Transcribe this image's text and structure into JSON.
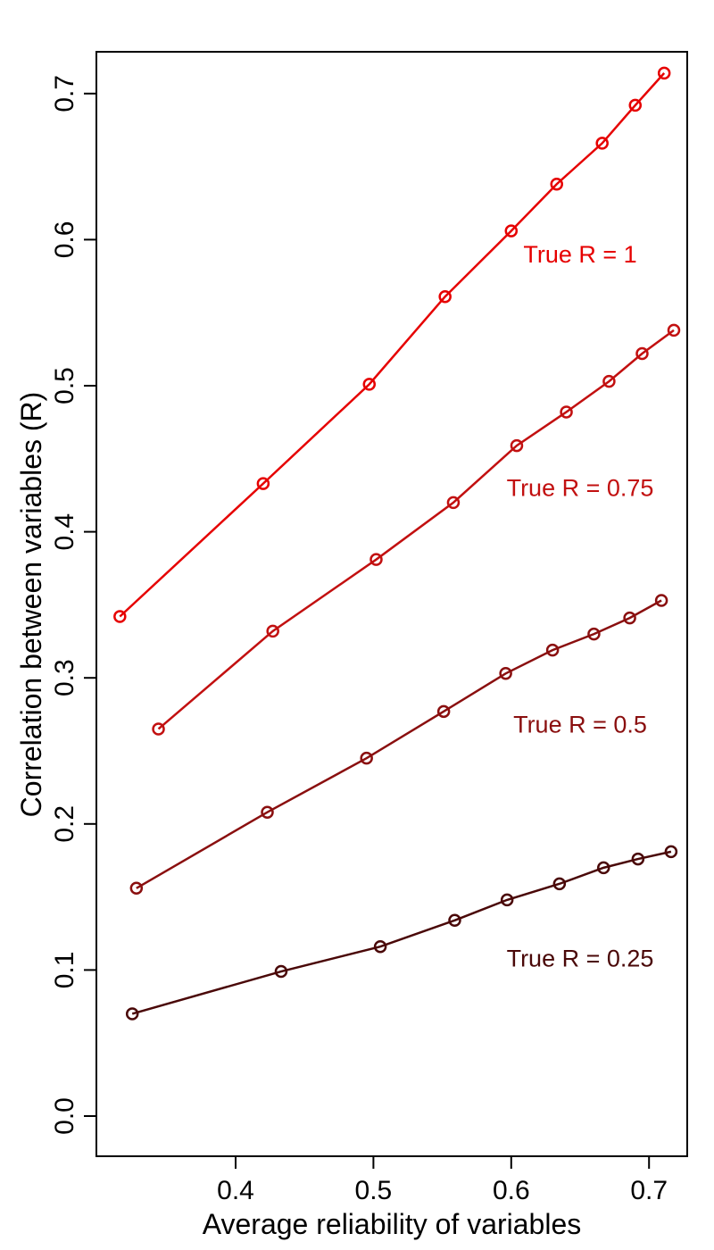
{
  "chart_data": {
    "type": "line",
    "title": "",
    "xlabel": "Average reliability of variables",
    "ylabel": "Correlation between variables (R)",
    "xlim": [
      0.3,
      0.73
    ],
    "ylim": [
      -0.03,
      0.74
    ],
    "xticks": [
      0.4,
      0.5,
      0.6,
      0.7
    ],
    "xtick_labels": [
      "0.4",
      "0.5",
      "0.6",
      "0.7"
    ],
    "yticks": [
      0.0,
      0.1,
      0.2,
      0.3,
      0.4,
      0.5,
      0.6,
      0.7
    ],
    "ytick_labels": [
      "0.0",
      "0.1",
      "0.2",
      "0.3",
      "0.4",
      "0.5",
      "0.6",
      "0.7"
    ],
    "grid": false,
    "legend": "none",
    "marker": "open-circle",
    "series": [
      {
        "name": "True R = 1",
        "color": "#e60000",
        "label_pos": [
          0.65,
          0.59
        ],
        "x": [
          0.316,
          0.42,
          0.497,
          0.552,
          0.6,
          0.633,
          0.666,
          0.69,
          0.711
        ],
        "y": [
          0.342,
          0.433,
          0.501,
          0.561,
          0.606,
          0.638,
          0.666,
          0.692,
          0.714
        ]
      },
      {
        "name": "True R = 0.75",
        "color": "#c21010",
        "label_pos": [
          0.65,
          0.43
        ],
        "x": [
          0.344,
          0.427,
          0.502,
          0.558,
          0.604,
          0.64,
          0.671,
          0.695,
          0.718
        ],
        "y": [
          0.265,
          0.332,
          0.381,
          0.42,
          0.459,
          0.482,
          0.503,
          0.522,
          0.538
        ]
      },
      {
        "name": "True R = 0.5",
        "color": "#8a0f0f",
        "label_pos": [
          0.65,
          0.268
        ],
        "x": [
          0.328,
          0.423,
          0.495,
          0.551,
          0.596,
          0.63,
          0.66,
          0.686,
          0.709
        ],
        "y": [
          0.156,
          0.208,
          0.245,
          0.277,
          0.303,
          0.319,
          0.33,
          0.341,
          0.353
        ]
      },
      {
        "name": "True R = 0.25",
        "color": "#4a0808",
        "label_pos": [
          0.65,
          0.108
        ],
        "x": [
          0.325,
          0.433,
          0.505,
          0.559,
          0.597,
          0.635,
          0.667,
          0.692,
          0.716
        ],
        "y": [
          0.07,
          0.099,
          0.116,
          0.134,
          0.148,
          0.159,
          0.17,
          0.176,
          0.181
        ]
      }
    ]
  }
}
